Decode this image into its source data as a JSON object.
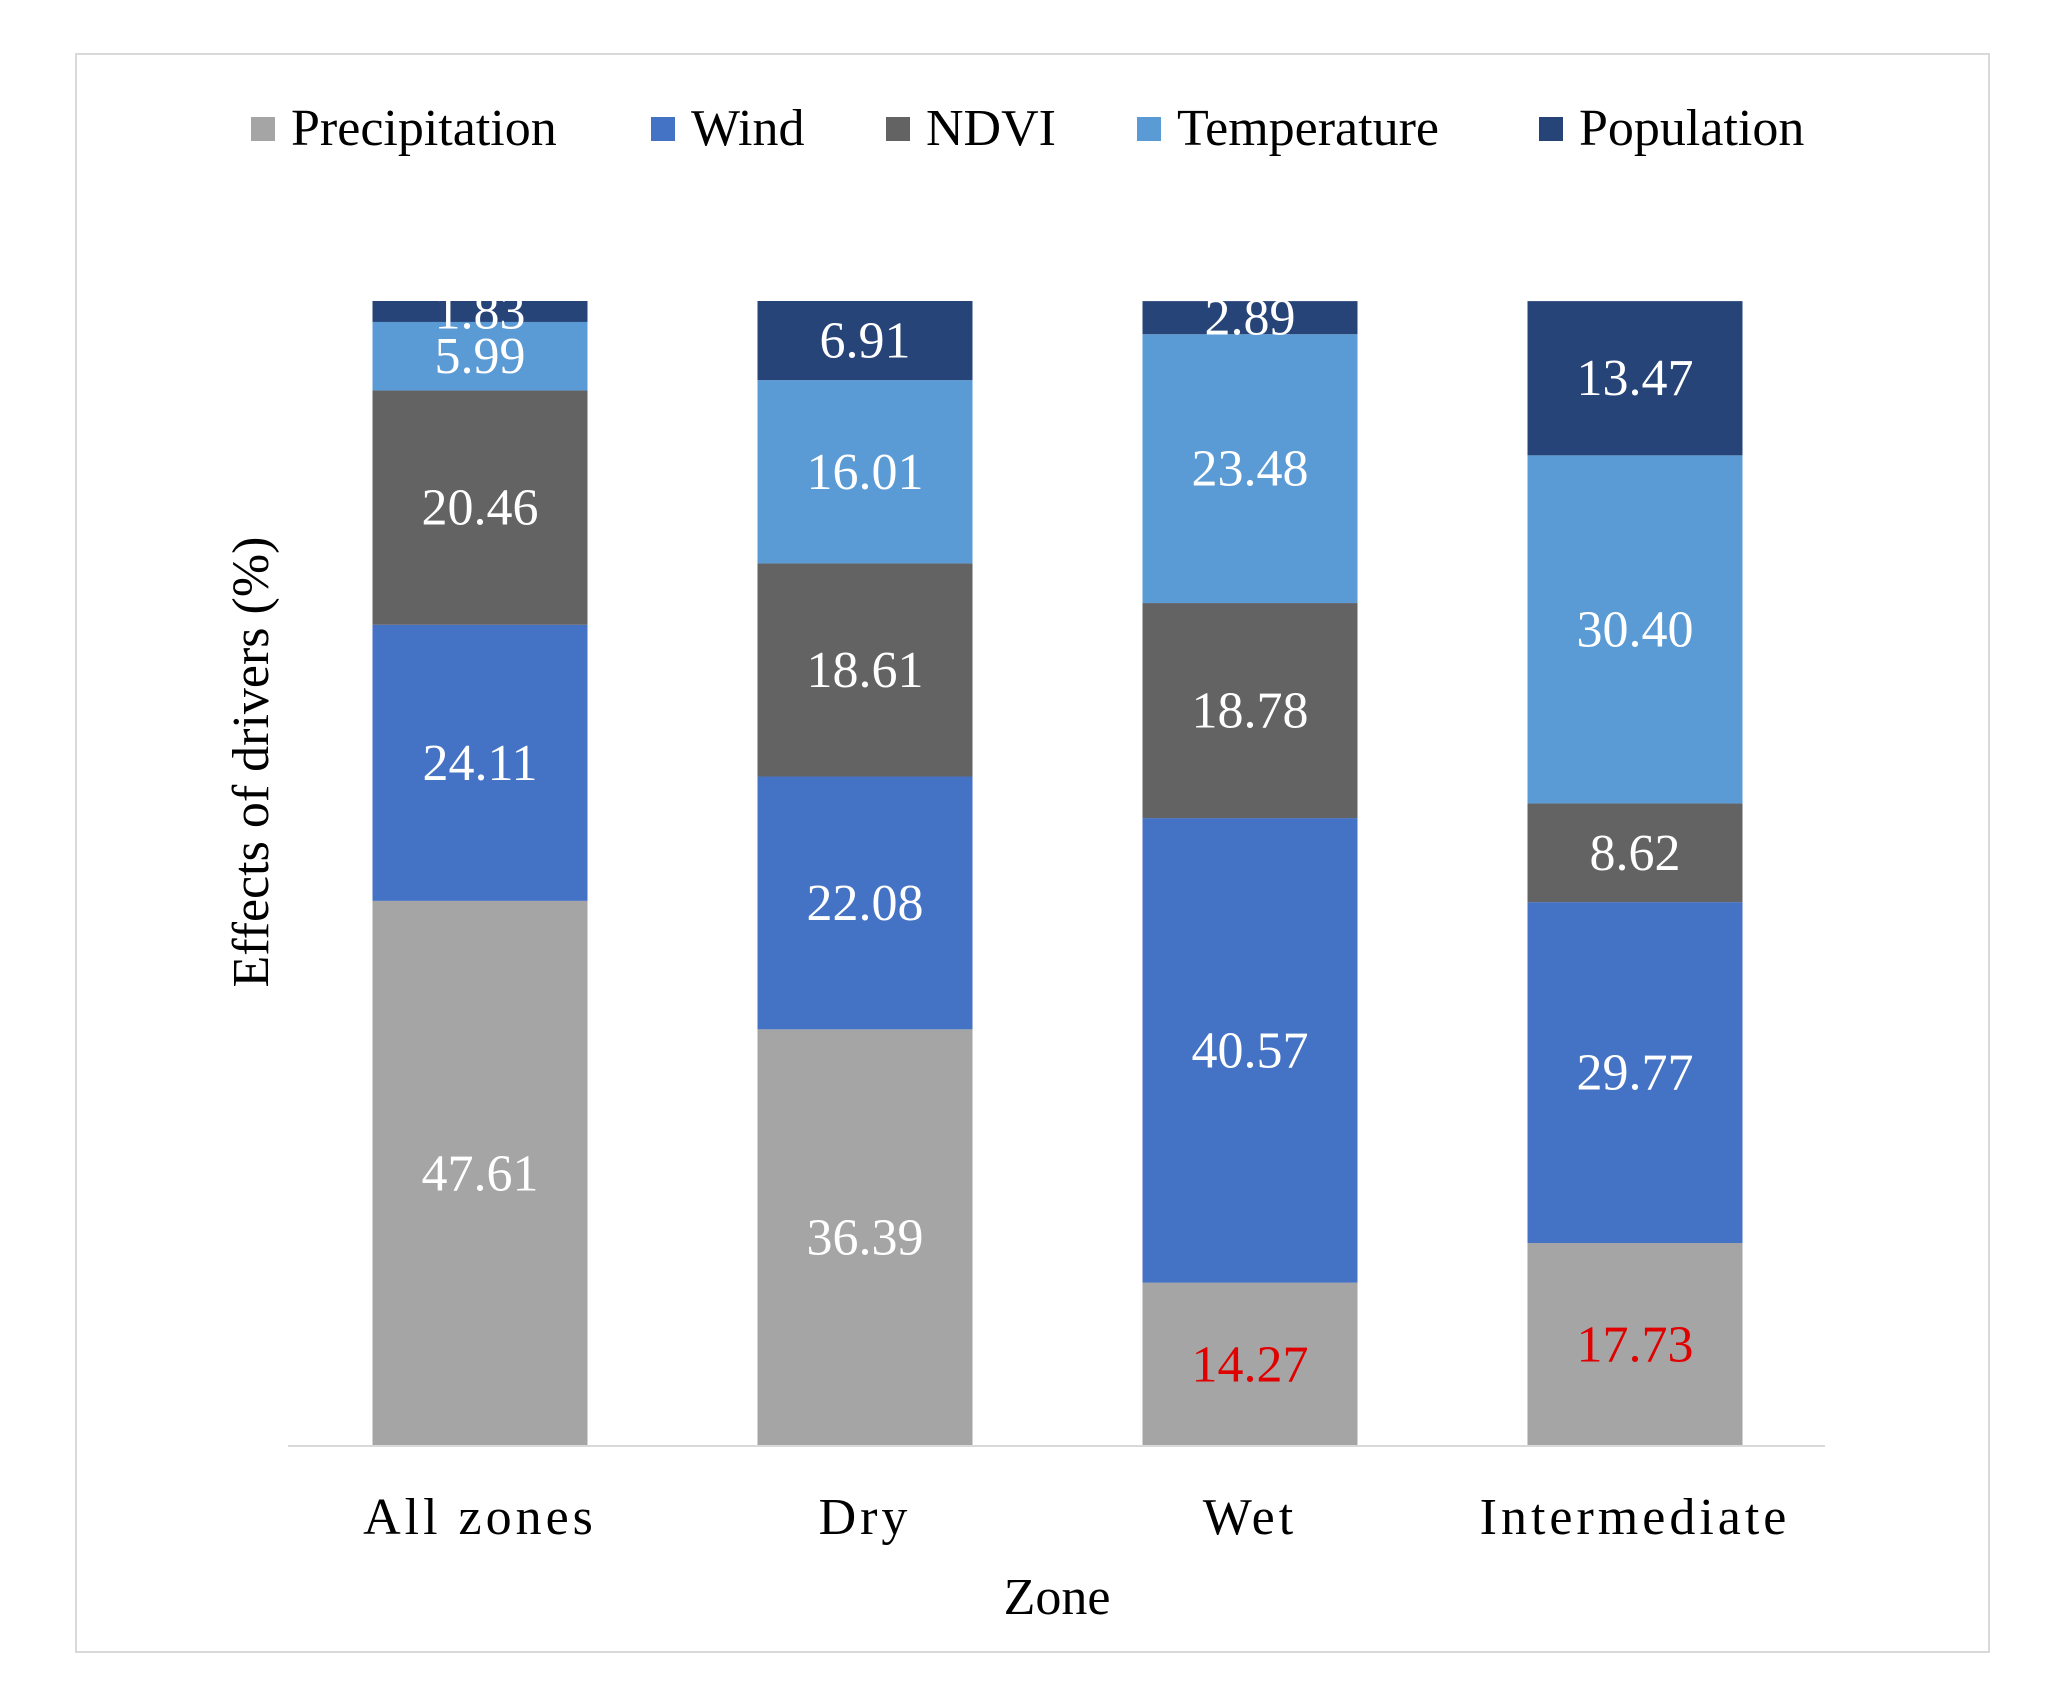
{
  "chart_data": {
    "type": "stacked-bar",
    "title": "",
    "xlabel": "Zone",
    "ylabel": "Effects of drivers (%)",
    "ylim": [
      0,
      100
    ],
    "grid": false,
    "legend_position": "top",
    "categories": [
      "All zones",
      "Dry",
      "Wet",
      "Intermediate"
    ],
    "series": [
      {
        "name": "Precipitation",
        "color": "#a5a5a5",
        "values": [
          47.61,
          36.39,
          14.27,
          17.73
        ],
        "labels": [
          "47.61",
          "36.39",
          "14.27",
          "17.73"
        ],
        "label_colors": [
          "#ffffff",
          "#ffffff",
          "#e00000",
          "#e00000"
        ]
      },
      {
        "name": "Wind",
        "color": "#4472c4",
        "values": [
          24.11,
          22.08,
          40.57,
          29.77
        ],
        "labels": [
          "24.11",
          "22.08",
          "40.57",
          "29.77"
        ],
        "label_colors": [
          "#ffffff",
          "#ffffff",
          "#ffffff",
          "#ffffff"
        ]
      },
      {
        "name": "NDVI",
        "color": "#636363",
        "values": [
          20.46,
          18.61,
          18.78,
          8.62
        ],
        "labels": [
          "20.46",
          "18.61",
          "18.78",
          "8.62"
        ],
        "label_colors": [
          "#ffffff",
          "#ffffff",
          "#ffffff",
          "#ffffff"
        ]
      },
      {
        "name": "Temperature",
        "color": "#5b9bd5",
        "values": [
          5.99,
          16.01,
          23.48,
          30.4
        ],
        "labels": [
          "5.99",
          "16.01",
          "23.48",
          "30.40"
        ],
        "label_colors": [
          "#ffffff",
          "#ffffff",
          "#ffffff",
          "#ffffff"
        ]
      },
      {
        "name": "Population",
        "color": "#264478",
        "values": [
          1.83,
          6.91,
          2.89,
          13.47
        ],
        "labels": [
          "1.83",
          "6.91",
          "2.89",
          "13.47"
        ],
        "label_colors": [
          "#ffffff",
          "#ffffff",
          "#ffffff",
          "#ffffff"
        ]
      }
    ]
  }
}
